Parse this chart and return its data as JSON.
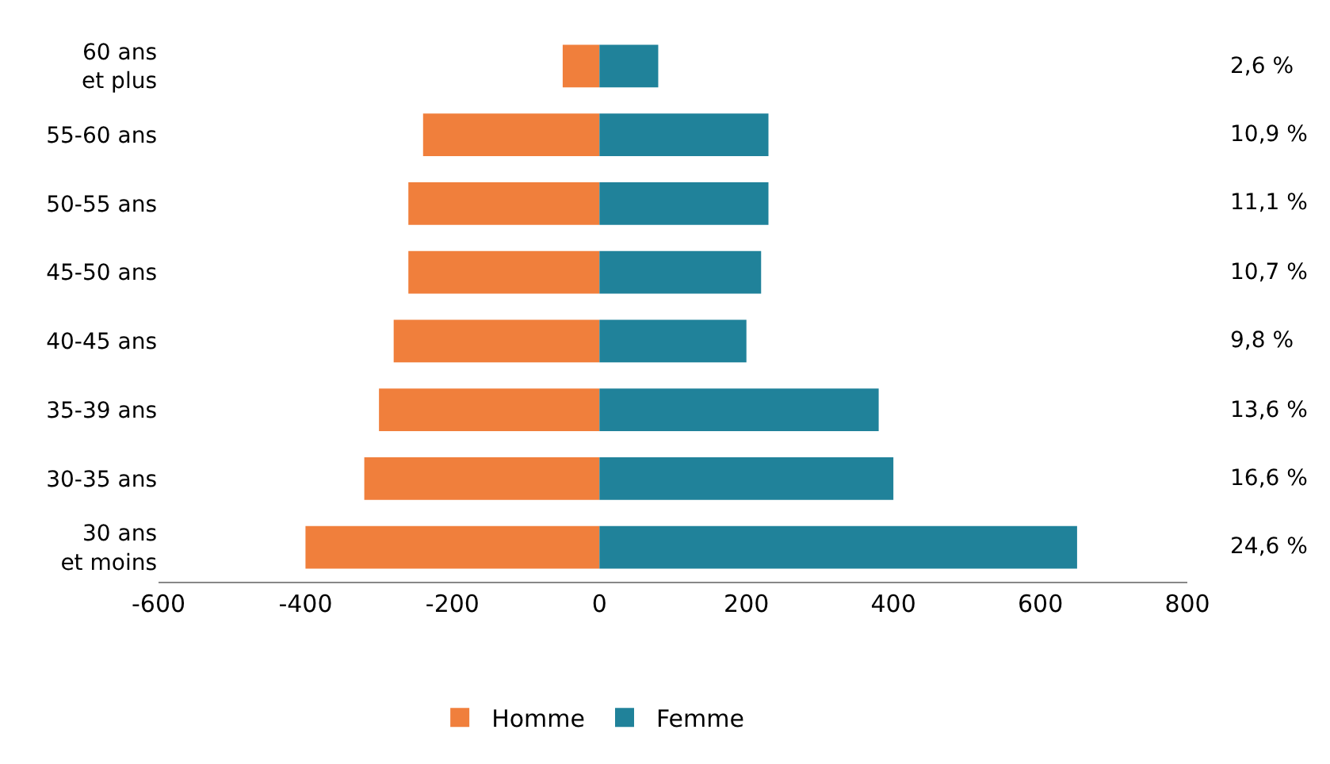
{
  "chart_data": {
    "type": "bar",
    "orientation": "horizontal",
    "stacked": true,
    "categories": [
      "60 ans\net plus",
      "55-60 ans",
      "50-55 ans",
      "45-50 ans",
      "40-45 ans",
      "35-39 ans",
      "30-35 ans",
      "30 ans\net moins"
    ],
    "series": [
      {
        "name": "Homme",
        "color": "#f07f3c",
        "values": [
          -50,
          -240,
          -260,
          -260,
          -280,
          -300,
          -320,
          -400
        ]
      },
      {
        "name": "Femme",
        "color": "#20829a",
        "values": [
          80,
          230,
          230,
          220,
          200,
          380,
          400,
          650
        ]
      }
    ],
    "xlim": [
      -600,
      800
    ],
    "xticks": [
      -600,
      -400,
      -200,
      0,
      200,
      400,
      600,
      800
    ],
    "annotations": [
      "2,6 %",
      "10,9 %",
      "11,1 %",
      "10,7 %",
      "9,8 %",
      "13,6 %",
      "16,6 %",
      "24,6 %"
    ],
    "legend": "bottom"
  }
}
